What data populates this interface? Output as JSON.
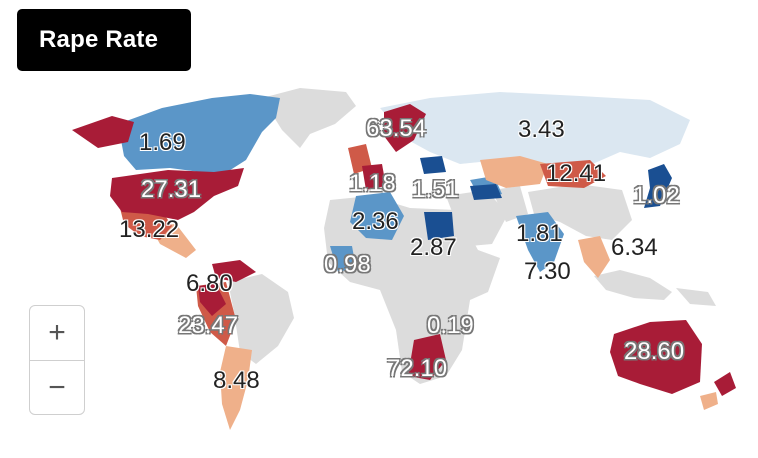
{
  "title": "Rape Rate",
  "zoom": {
    "in": "+",
    "out": "−"
  },
  "colors": {
    "no_data": "#dcdcdc",
    "very_low": "#dbe7f1",
    "low": "#5b96c8",
    "lowest": "#1a4f92",
    "mid": "#efb08a",
    "high": "#cf5a48",
    "highest": "#a81c37",
    "ocean": "#ffffff"
  },
  "labels": [
    {
      "id": "canada",
      "value": "1.69"
    },
    {
      "id": "usa",
      "value": "27.31"
    },
    {
      "id": "mexico",
      "value": "13.22"
    },
    {
      "id": "caribbean",
      "value": "6.80"
    },
    {
      "id": "peru-bolivia",
      "value": "23.47"
    },
    {
      "id": "argentina",
      "value": "8.48"
    },
    {
      "id": "sweden",
      "value": "63.54"
    },
    {
      "id": "france",
      "value": "1.18"
    },
    {
      "id": "balkans",
      "value": "1.51"
    },
    {
      "id": "algeria",
      "value": "2.36"
    },
    {
      "id": "west-africa",
      "value": "0.98"
    },
    {
      "id": "egypt",
      "value": "2.87"
    },
    {
      "id": "russia",
      "value": "3.43"
    },
    {
      "id": "mongolia",
      "value": "12.41"
    },
    {
      "id": "japan",
      "value": "1.02"
    },
    {
      "id": "india-north",
      "value": "1.81"
    },
    {
      "id": "india",
      "value": "7.30"
    },
    {
      "id": "southeast-asia",
      "value": "6.34"
    },
    {
      "id": "mozambique",
      "value": "0.19"
    },
    {
      "id": "south-africa",
      "value": "72.10"
    },
    {
      "id": "australia",
      "value": "28.60"
    }
  ]
}
